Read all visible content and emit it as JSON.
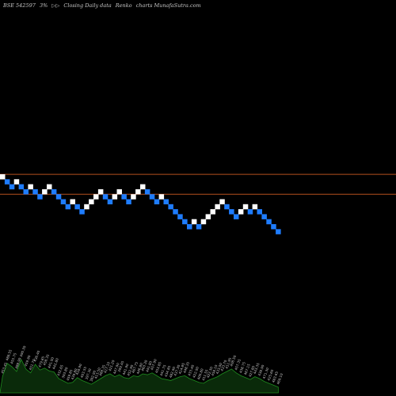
{
  "header": {
    "symbol": "BSE 542597",
    "brick": "3%",
    "arrows": "▷▷",
    "desc": "Closing Daily data",
    "type": "Renko",
    "site": "charts MunafaSutra.com"
  },
  "colors": {
    "background": "#000000",
    "up_brick": "#ffffff",
    "down_brick": "#1e7cff",
    "level_line": "#b4501e",
    "volume_fill": "#0a2a0a",
    "volume_line": "#1e8c1e",
    "label_text": "#c8c8c8"
  },
  "chart_data": {
    "type": "renko",
    "brick_size_percent": 3,
    "bricks": [
      {
        "i": 0,
        "level": 0,
        "dir": "up"
      },
      {
        "i": 1,
        "level": -1,
        "dir": "down"
      },
      {
        "i": 2,
        "level": -2,
        "dir": "down"
      },
      {
        "i": 3,
        "level": -1,
        "dir": "up"
      },
      {
        "i": 4,
        "level": -2,
        "dir": "down"
      },
      {
        "i": 5,
        "level": -3,
        "dir": "down"
      },
      {
        "i": 6,
        "level": -2,
        "dir": "up"
      },
      {
        "i": 7,
        "level": -3,
        "dir": "down"
      },
      {
        "i": 8,
        "level": -4,
        "dir": "down"
      },
      {
        "i": 9,
        "level": -3,
        "dir": "up"
      },
      {
        "i": 10,
        "level": -2,
        "dir": "up"
      },
      {
        "i": 11,
        "level": -3,
        "dir": "down"
      },
      {
        "i": 12,
        "level": -4,
        "dir": "down"
      },
      {
        "i": 13,
        "level": -5,
        "dir": "down"
      },
      {
        "i": 14,
        "level": -6,
        "dir": "down"
      },
      {
        "i": 15,
        "level": -5,
        "dir": "up"
      },
      {
        "i": 16,
        "level": -6,
        "dir": "down"
      },
      {
        "i": 17,
        "level": -7,
        "dir": "down"
      },
      {
        "i": 18,
        "level": -6,
        "dir": "up"
      },
      {
        "i": 19,
        "level": -5,
        "dir": "up"
      },
      {
        "i": 20,
        "level": -4,
        "dir": "up"
      },
      {
        "i": 21,
        "level": -3,
        "dir": "up"
      },
      {
        "i": 22,
        "level": -4,
        "dir": "down"
      },
      {
        "i": 23,
        "level": -5,
        "dir": "down"
      },
      {
        "i": 24,
        "level": -4,
        "dir": "up"
      },
      {
        "i": 25,
        "level": -3,
        "dir": "up"
      },
      {
        "i": 26,
        "level": -4,
        "dir": "down"
      },
      {
        "i": 27,
        "level": -5,
        "dir": "down"
      },
      {
        "i": 28,
        "level": -4,
        "dir": "up"
      },
      {
        "i": 29,
        "level": -3,
        "dir": "up"
      },
      {
        "i": 30,
        "level": -2,
        "dir": "up"
      },
      {
        "i": 31,
        "level": -3,
        "dir": "down"
      },
      {
        "i": 32,
        "level": -4,
        "dir": "down"
      },
      {
        "i": 33,
        "level": -5,
        "dir": "down"
      },
      {
        "i": 34,
        "level": -4,
        "dir": "up"
      },
      {
        "i": 35,
        "level": -5,
        "dir": "down"
      },
      {
        "i": 36,
        "level": -6,
        "dir": "down"
      },
      {
        "i": 37,
        "level": -7,
        "dir": "down"
      },
      {
        "i": 38,
        "level": -8,
        "dir": "down"
      },
      {
        "i": 39,
        "level": -9,
        "dir": "down"
      },
      {
        "i": 40,
        "level": -10,
        "dir": "down"
      },
      {
        "i": 41,
        "level": -9,
        "dir": "up"
      },
      {
        "i": 42,
        "level": -10,
        "dir": "down"
      },
      {
        "i": 43,
        "level": -9,
        "dir": "up"
      },
      {
        "i": 44,
        "level": -8,
        "dir": "up"
      },
      {
        "i": 45,
        "level": -7,
        "dir": "up"
      },
      {
        "i": 46,
        "level": -6,
        "dir": "up"
      },
      {
        "i": 47,
        "level": -5,
        "dir": "up"
      },
      {
        "i": 48,
        "level": -6,
        "dir": "down"
      },
      {
        "i": 49,
        "level": -7,
        "dir": "down"
      },
      {
        "i": 50,
        "level": -8,
        "dir": "down"
      },
      {
        "i": 51,
        "level": -7,
        "dir": "up"
      },
      {
        "i": 52,
        "level": -6,
        "dir": "up"
      },
      {
        "i": 53,
        "level": -7,
        "dir": "down"
      },
      {
        "i": 54,
        "level": -6,
        "dir": "up"
      },
      {
        "i": 55,
        "level": -7,
        "dir": "down"
      },
      {
        "i": 56,
        "level": -8,
        "dir": "down"
      },
      {
        "i": 57,
        "level": -9,
        "dir": "down"
      },
      {
        "i": 58,
        "level": -10,
        "dir": "down"
      },
      {
        "i": 59,
        "level": -11,
        "dir": "down"
      }
    ],
    "reference_levels": [
      0.5,
      -3.5
    ],
    "volume": [
      0.35,
      0.62,
      0.55,
      0.45,
      0.7,
      0.5,
      0.42,
      0.6,
      0.48,
      0.52,
      0.46,
      0.44,
      0.3,
      0.25,
      0.2,
      0.22,
      0.32,
      0.26,
      0.22,
      0.18,
      0.24,
      0.3,
      0.36,
      0.4,
      0.34,
      0.38,
      0.32,
      0.3,
      0.36,
      0.34,
      0.4,
      0.38,
      0.42,
      0.36,
      0.3,
      0.28,
      0.26,
      0.3,
      0.34,
      0.36,
      0.3,
      0.26,
      0.22,
      0.2,
      0.26,
      0.3,
      0.34,
      0.4,
      0.45,
      0.5,
      0.42,
      0.36,
      0.32,
      0.28,
      0.34,
      0.3,
      0.24,
      0.2,
      0.16,
      0.12
    ],
    "labels": [
      "453.45",
      "488.55",
      "455.75",
      "488.90",
      "490.30",
      "459.90",
      "451.70",
      "436.40",
      "479.85",
      "458.35",
      "441.90",
      "442.80",
      "432.65",
      "393.80",
      "459.85",
      "439.80",
      "418.90",
      "403.55",
      "397.30",
      "382.90",
      "413.50",
      "488.35",
      "417.10",
      "421.20",
      "447.90",
      "399.45",
      "441.90",
      "452.90",
      "467.75",
      "446.80",
      "460.30",
      "441.80",
      "457.90",
      "453.85",
      "441.75",
      "434.85",
      "482.90",
      "437.30",
      "414.85",
      "448.35",
      "433.40",
      "422.90",
      "400.80",
      "411.55",
      "422.30",
      "458.10",
      "433.00",
      "433.70",
      "411.95",
      "408.50",
      "457.35",
      "438.75",
      "467.15",
      "427.80",
      "443.35",
      "438.90",
      "471.30",
      "425.60",
      "483.65",
      "469.10"
    ]
  }
}
